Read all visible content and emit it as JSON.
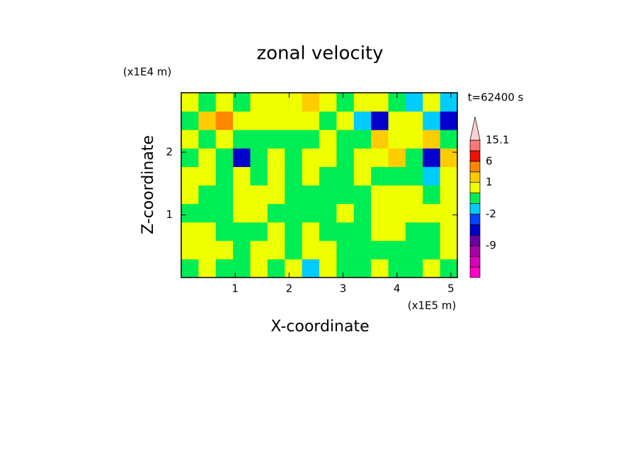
{
  "chart_data": {
    "type": "contour",
    "title": "zonal velocity",
    "xlabel": "X-coordinate",
    "ylabel": "Z-coordinate",
    "x_unit": "(x1E5 m)",
    "y_unit": "(x1E4 m)",
    "annotation": "t=62400 s",
    "xlim": [
      0,
      5.12
    ],
    "ylim": [
      0,
      2.95
    ],
    "xticks": [
      1,
      2,
      3,
      4,
      5
    ],
    "yticks": [
      1,
      2
    ],
    "z": [
      [
        -0.5,
        0.5,
        -0.5,
        -0.5,
        0.5,
        -0.5,
        0.5,
        -1.5,
        0.5,
        -0.5,
        -0.5,
        0.5,
        -0.5,
        -0.5,
        0.5,
        -0.5
      ],
      [
        0.5,
        0.5,
        0.5,
        -0.5,
        0.5,
        0.5,
        -0.5,
        0.5,
        0.5,
        -0.5,
        -0.5,
        -0.5,
        -0.5,
        -0.5,
        -0.5,
        0.5
      ],
      [
        0.5,
        0.5,
        -0.5,
        -0.5,
        -0.5,
        0.5,
        -0.5,
        0.5,
        -0.5,
        -0.5,
        -0.5,
        0.5,
        0.5,
        -0.5,
        -0.5,
        0.5
      ],
      [
        -0.5,
        -0.5,
        -0.5,
        0.5,
        0.5,
        -0.5,
        -0.5,
        -0.5,
        -0.5,
        0.5,
        -0.5,
        0.5,
        0.5,
        0.5,
        0.5,
        0.5
      ],
      [
        0.5,
        -0.5,
        -0.5,
        0.5,
        0.5,
        0.5,
        -0.5,
        -0.5,
        -0.5,
        -0.5,
        -0.5,
        0.5,
        0.5,
        0.5,
        -0.5,
        0.5
      ],
      [
        0.5,
        0.5,
        -0.5,
        0.5,
        -0.5,
        0.5,
        -0.5,
        0.5,
        -0.5,
        -0.5,
        0.5,
        -0.5,
        -0.5,
        -0.5,
        -1.5,
        0.5
      ],
      [
        -0.5,
        0.5,
        -0.5,
        -4,
        -0.5,
        0.5,
        -0.5,
        0.5,
        0.5,
        -0.5,
        0.5,
        0.5,
        2,
        -0.5,
        -4,
        2
      ],
      [
        0.5,
        -0.5,
        0.5,
        -0.5,
        -0.5,
        -0.5,
        -0.5,
        -0.5,
        0.5,
        -0.5,
        -0.5,
        2,
        0.5,
        0.5,
        2,
        -0.5
      ],
      [
        -0.5,
        2,
        4,
        0.5,
        0.5,
        0.5,
        0.5,
        0.5,
        -0.5,
        0.5,
        -1.5,
        -4,
        0.5,
        0.5,
        -1.5,
        -4
      ],
      [
        0.5,
        -0.5,
        0.5,
        -0.5,
        0.5,
        0.5,
        0.5,
        2,
        0.5,
        -0.5,
        0.5,
        0.5,
        -0.5,
        -1.5,
        0.5,
        -1.5
      ]
    ],
    "levels": [
      -15,
      -12,
      -9,
      -6,
      -3,
      -2,
      -1,
      0,
      1,
      3,
      6,
      9,
      15.1
    ],
    "colors": [
      "#ff00c8",
      "#dd00bb",
      "#aa00aa",
      "#6a00a8",
      "#0000cc",
      "#0044ff",
      "#00ccff",
      "#00ee55",
      "#eeff00",
      "#ffcc00",
      "#ff8800",
      "#ee1100",
      "#ff7777",
      "#ffd0d0"
    ],
    "colorbar_ticks": [
      -9,
      -2,
      1,
      6,
      15.1
    ]
  }
}
